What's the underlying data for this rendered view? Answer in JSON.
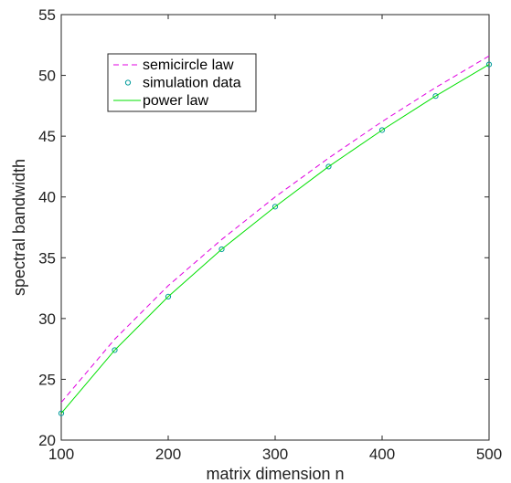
{
  "chart_data": {
    "type": "line",
    "title": "",
    "xlabel": "matrix dimension n",
    "ylabel": "spectral bandwidth",
    "xlim": [
      100,
      500
    ],
    "ylim": [
      20,
      55
    ],
    "xticks": [
      100,
      200,
      300,
      400,
      500
    ],
    "yticks": [
      20,
      25,
      30,
      35,
      40,
      45,
      50,
      55
    ],
    "grid": false,
    "legend_position": "top-left",
    "series": [
      {
        "name": "semicircle law",
        "style": "dashed-line",
        "color": "#e000e0",
        "x": [
          100,
          150,
          200,
          250,
          300,
          350,
          400,
          450,
          500
        ],
        "y": [
          23.1,
          28.3,
          32.7,
          36.5,
          40.0,
          43.2,
          46.2,
          49.0,
          51.6
        ]
      },
      {
        "name": "simulation data",
        "style": "markers",
        "color": "#009b9b",
        "x": [
          100,
          150,
          200,
          250,
          300,
          350,
          400,
          450,
          500
        ],
        "y": [
          22.2,
          27.4,
          31.8,
          35.7,
          39.2,
          42.5,
          45.5,
          48.3,
          50.9
        ]
      },
      {
        "name": "power law",
        "style": "solid-line",
        "color": "#00e000",
        "x": [
          100,
          150,
          200,
          250,
          300,
          350,
          400,
          450,
          500
        ],
        "y": [
          22.2,
          27.4,
          31.8,
          35.7,
          39.2,
          42.5,
          45.5,
          48.3,
          50.9
        ]
      }
    ]
  }
}
